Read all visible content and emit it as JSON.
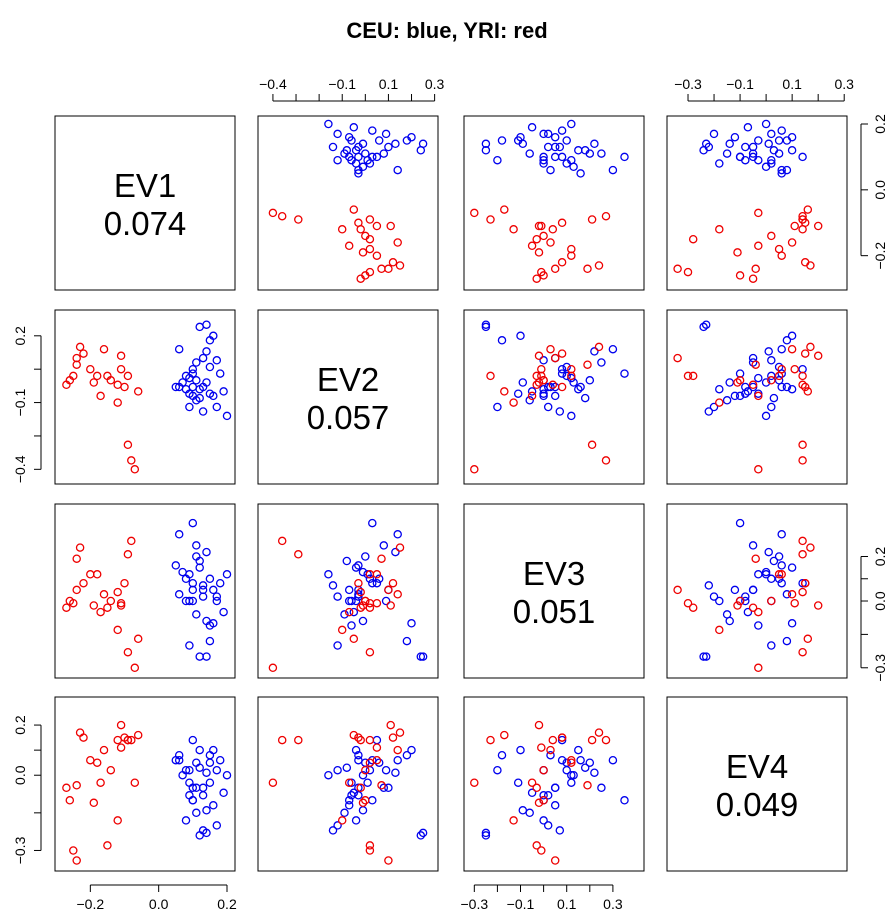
{
  "chart_data": {
    "type": "scatter",
    "layout": "pairs-matrix",
    "title": "CEU: blue, YRI: red",
    "colors": {
      "CEU": "#0000ee",
      "YRI": "#ee0000",
      "axis": "#000000"
    },
    "variables": [
      {
        "name": "EV1",
        "value": "0.074",
        "range": [
          -0.28,
          0.2
        ],
        "ticks": [
          -0.2,
          0.0,
          0.2
        ],
        "tick_labels": [
          "−0.2",
          "0.0",
          "0.2"
        ]
      },
      {
        "name": "EV2",
        "value": "0.057",
        "range": [
          -0.43,
          0.28
        ],
        "ticks": [
          -0.4,
          -0.3,
          -0.2,
          -0.1,
          0.0,
          0.1,
          0.2,
          0.3
        ],
        "tick_labels": [
          "−0.4",
          "",
          "",
          "−0.1",
          "",
          "0.1",
          "",
          "0.3"
        ],
        "side_ticks": [
          -0.4,
          -0.25,
          -0.1,
          0.05,
          0.2
        ],
        "side_tick_labels": [
          "−0.4",
          "",
          "−0.1",
          "",
          "0.2"
        ]
      },
      {
        "name": "EV3",
        "value": "0.051",
        "range": [
          -0.31,
          0.4
        ],
        "ticks": [
          -0.3,
          -0.2,
          -0.1,
          0.0,
          0.1,
          0.2,
          0.3
        ],
        "tick_labels": [
          "−0.3",
          "",
          "−0.1",
          "",
          "0.1",
          "",
          "0.3"
        ],
        "side_ticks": [
          -0.3,
          -0.15,
          0.0,
          0.1,
          0.2
        ],
        "side_tick_labels": [
          "−0.3",
          "",
          "0.0",
          "",
          "0.2"
        ]
      },
      {
        "name": "EV4",
        "value": "0.049",
        "range": [
          -0.35,
          0.28
        ],
        "ticks": [
          -0.3,
          -0.2,
          -0.1,
          0.0,
          0.1,
          0.2,
          0.3
        ],
        "tick_labels": [
          "−0.3",
          "",
          "−0.1",
          "",
          "0.1",
          "",
          "0.3"
        ],
        "side_ticks": [
          -0.3,
          -0.15,
          0.0,
          0.1,
          0.2
        ],
        "side_tick_labels": [
          "−0.3",
          "",
          "0.0",
          "",
          "0.2"
        ]
      }
    ],
    "series": [
      {
        "name": "CEU",
        "color": "#0000ee",
        "points": [
          [
            0.05,
            -0.03,
            0.16,
            0.06
          ],
          [
            0.06,
            -0.03,
            0.03,
            0.08
          ],
          [
            0.07,
            -0.01,
            0.13,
            0.0
          ],
          [
            0.08,
            0.02,
            0.1,
            0.02
          ],
          [
            0.09,
            0.01,
            0.12,
            -0.03
          ],
          [
            0.09,
            -0.06,
            0.0,
            -0.08
          ],
          [
            0.1,
            -0.03,
            0.05,
            -0.05
          ],
          [
            0.1,
            -0.07,
            0.0,
            -0.1
          ],
          [
            0.1,
            0.05,
            0.08,
            0.14
          ],
          [
            0.11,
            0.0,
            0.2,
            0.05
          ],
          [
            0.11,
            -0.09,
            -0.06,
            -0.15
          ],
          [
            0.12,
            -0.04,
            0.15,
            0.1
          ],
          [
            0.12,
            -0.08,
            0.18,
            0.03
          ],
          [
            0.13,
            0.1,
            0.05,
            -0.05
          ],
          [
            0.13,
            -0.03,
            0.02,
            -0.08
          ],
          [
            0.14,
            -0.01,
            -0.09,
            -0.14
          ],
          [
            0.14,
            0.13,
            0.22,
            0.01
          ],
          [
            0.15,
            0.06,
            0.1,
            0.05
          ],
          [
            0.15,
            -0.06,
            -0.11,
            -0.03
          ],
          [
            0.16,
            -0.07,
            0.05,
            -0.12
          ],
          [
            0.17,
            0.09,
            0.0,
            0.02
          ],
          [
            0.17,
            -0.12,
            0.02,
            -0.2
          ],
          [
            0.18,
            0.03,
            0.08,
            0.06
          ],
          [
            0.19,
            -0.05,
            -0.05,
            -0.07
          ],
          [
            0.2,
            -0.16,
            0.12,
            0.0
          ],
          [
            0.12,
            0.24,
            -0.25,
            -0.24
          ],
          [
            0.14,
            0.25,
            -0.25,
            -0.23
          ],
          [
            0.09,
            -0.12,
            -0.2,
            0.02
          ],
          [
            0.06,
            0.14,
            0.3,
            0.06
          ],
          [
            0.16,
            0.2,
            -0.1,
            0.1
          ],
          [
            0.11,
            0.08,
            0.25,
            -0.05
          ],
          [
            0.13,
            -0.14,
            0.07,
            -0.22
          ],
          [
            0.08,
            -0.04,
            0.0,
            -0.18
          ],
          [
            0.15,
            0.18,
            -0.18,
            0.08
          ],
          [
            0.1,
            0.03,
            0.35,
            -0.1
          ]
        ]
      },
      {
        "name": "YRI",
        "color": "#ee0000",
        "points": [
          [
            -0.27,
            -0.02,
            -0.03,
            -0.05
          ],
          [
            -0.26,
            0.0,
            0.0,
            -0.1
          ],
          [
            -0.25,
            0.02,
            -0.01,
            -0.3
          ],
          [
            -0.24,
            0.1,
            0.05,
            -0.34
          ],
          [
            -0.23,
            0.15,
            0.24,
            0.17
          ],
          [
            -0.22,
            0.12,
            0.08,
            0.15
          ],
          [
            -0.2,
            0.05,
            0.12,
            0.06
          ],
          [
            -0.19,
            -0.01,
            -0.02,
            -0.11
          ],
          [
            -0.18,
            0.02,
            0.12,
            0.05
          ],
          [
            -0.17,
            -0.07,
            -0.05,
            -0.03
          ],
          [
            -0.16,
            0.14,
            0.03,
            0.1
          ],
          [
            -0.15,
            0.02,
            -0.03,
            -0.28
          ],
          [
            -0.14,
            0.0,
            0.0,
            0.02
          ],
          [
            -0.12,
            -0.02,
            0.04,
            0.14
          ],
          [
            -0.11,
            0.05,
            -0.01,
            0.11
          ],
          [
            -0.1,
            -0.03,
            0.08,
            0.15
          ],
          [
            -0.09,
            -0.29,
            0.21,
            0.14
          ],
          [
            -0.08,
            -0.36,
            0.27,
            0.14
          ],
          [
            -0.07,
            -0.4,
            -0.3,
            -0.03
          ],
          [
            -0.06,
            -0.05,
            -0.17,
            0.16
          ],
          [
            -0.09,
            0.02,
            -0.23,
            0.14
          ],
          [
            -0.11,
            0.11,
            -0.02,
            0.2
          ],
          [
            -0.12,
            -0.1,
            -0.13,
            -0.18
          ],
          [
            -0.24,
            0.07,
            0.19,
            -0.04
          ]
        ]
      }
    ]
  }
}
